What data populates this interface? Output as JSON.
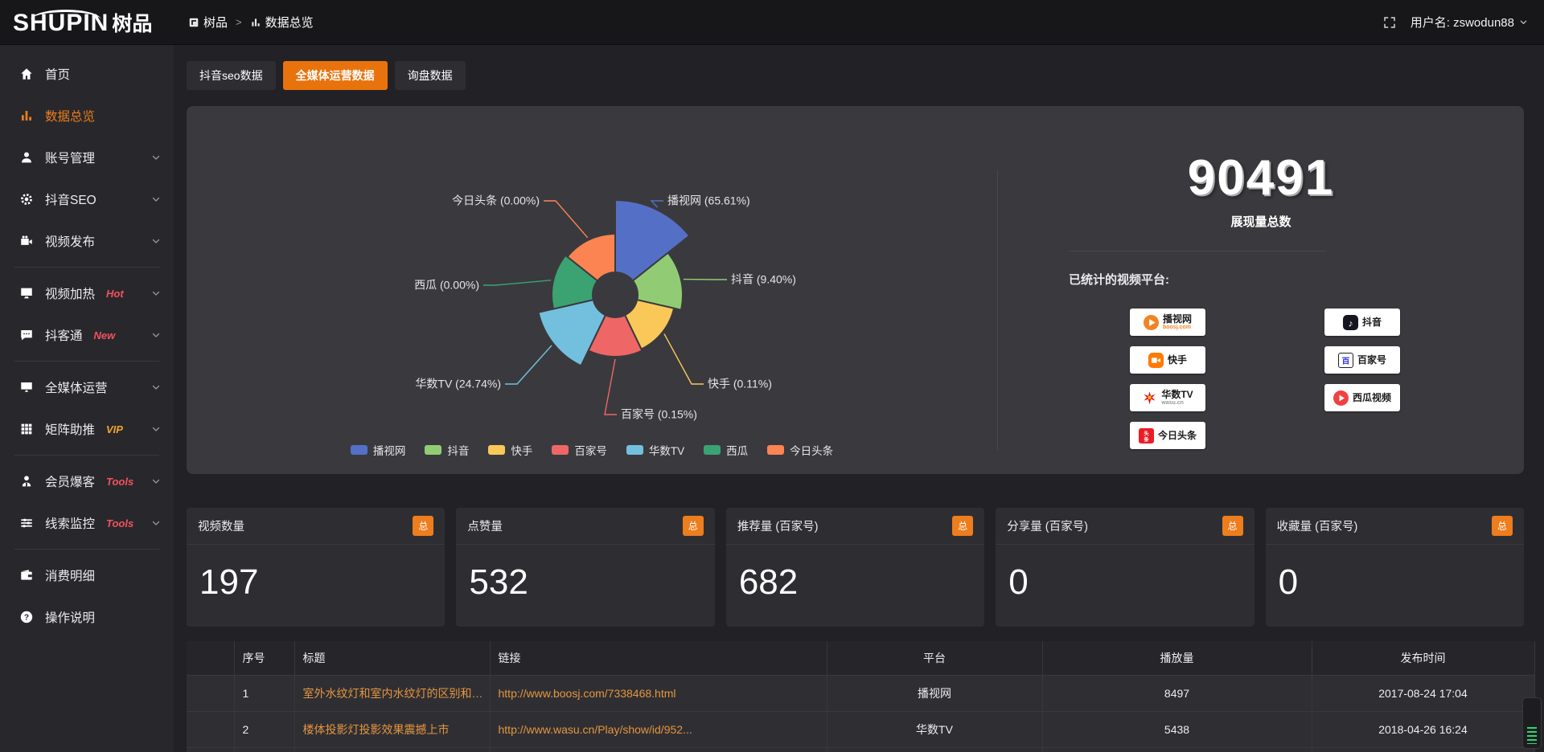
{
  "topbar": {
    "logo_en": "SHUPIN",
    "logo_cn": "树品",
    "breadcrumb": [
      {
        "icon": "app-icon",
        "label": "树品"
      },
      {
        "icon": "chart-mini-icon",
        "label": "数据总览"
      }
    ],
    "separator": ">",
    "user_label": "用户名: zswodun88"
  },
  "sidebar": {
    "items": [
      {
        "id": "home",
        "icon": "home-icon",
        "label": "首页"
      },
      {
        "id": "data-overview",
        "icon": "chart-icon",
        "label": "数据总览",
        "active": true
      },
      {
        "id": "account-manage",
        "icon": "user-icon",
        "label": "账号管理",
        "chevron": true
      },
      {
        "id": "douyin-seo",
        "icon": "gear-icon",
        "label": "抖音SEO",
        "chevron": true
      },
      {
        "id": "video-publish",
        "icon": "video-icon",
        "label": "视频发布",
        "chevron": true
      },
      {
        "divider": true
      },
      {
        "id": "video-heat",
        "icon": "monitor-icon",
        "label": "视频加热",
        "badge": "Hot",
        "badge_color": "#f4515c",
        "chevron": true
      },
      {
        "id": "douketong",
        "icon": "chat-icon",
        "label": "抖客通",
        "badge": "New",
        "badge_color": "#f4515c",
        "chevron": true
      },
      {
        "divider": true
      },
      {
        "id": "media-operation",
        "icon": "screen-icon",
        "label": "全媒体运营",
        "chevron": true
      },
      {
        "id": "matrix-boost",
        "icon": "grid-icon",
        "label": "矩阵助推",
        "badge": "VIP",
        "badge_color": "#f0a62a",
        "chevron": true
      },
      {
        "divider": true
      },
      {
        "id": "member-burst",
        "icon": "member-icon",
        "label": "会员爆客",
        "badge": "Tools",
        "badge_color": "#f4515c",
        "chevron": true
      },
      {
        "id": "clue-monitor",
        "icon": "sliders-icon",
        "label": "线索监控",
        "badge": "Tools",
        "badge_color": "#f4515c",
        "chevron": true
      },
      {
        "divider": true
      },
      {
        "id": "consumption-detail",
        "icon": "wallet-icon",
        "label": "消费明细"
      },
      {
        "id": "help",
        "icon": "help-icon",
        "label": "操作说明"
      }
    ]
  },
  "tabs": [
    {
      "id": "douyin-seo-data",
      "label": "抖音seo数据"
    },
    {
      "id": "media-operation-data",
      "label": "全媒体运营数据",
      "active": true
    },
    {
      "id": "inquiry-data",
      "label": "询盘数据"
    }
  ],
  "chart_data": {
    "type": "pie",
    "subtype": "nightingale-rose",
    "legend_position": "bottom",
    "label_format": "name (pct)",
    "series": [
      {
        "name": "播视网",
        "value": 65.61,
        "pct_label": "65.61%",
        "color": "#5470c6",
        "radius": 118
      },
      {
        "name": "抖音",
        "value": 9.4,
        "pct_label": "9.40%",
        "color": "#91cc75",
        "radius": 84
      },
      {
        "name": "快手",
        "value": 0.11,
        "pct_label": "0.11%",
        "color": "#fac858",
        "radius": 75
      },
      {
        "name": "百家号",
        "value": 0.15,
        "pct_label": "0.15%",
        "color": "#ee6666",
        "radius": 77
      },
      {
        "name": "华数TV",
        "value": 24.74,
        "pct_label": "24.74%",
        "color": "#73c0de",
        "radius": 98
      },
      {
        "name": "西瓜",
        "value": 0.0,
        "pct_label": "0.00%",
        "color": "#3ba272",
        "radius": 79
      },
      {
        "name": "今日头条",
        "value": 0.0,
        "pct_label": "0.00%",
        "color": "#fc8452",
        "radius": 76
      }
    ]
  },
  "summary": {
    "value": "90491",
    "label": "展现量总数",
    "platforms_title": "已统计的视频平台:",
    "platform_columns": [
      [
        {
          "name": "播视网",
          "sub": "boosj.com",
          "sub_color": "#f28322",
          "icon": "boosj-logo"
        },
        {
          "name": "快手",
          "icon": "kuaishou-logo"
        },
        {
          "name": "华数TV",
          "sub": "wasu.cn",
          "sub_color": "#999999",
          "icon": "wasu-logo"
        },
        {
          "name": "今日头条",
          "icon": "toutiao-logo"
        }
      ],
      [
        {
          "name": "抖音",
          "icon": "douyin-logo"
        },
        {
          "name": "百家号",
          "icon": "baijiahao-logo"
        },
        {
          "name": "西瓜视频",
          "icon": "xigua-logo"
        }
      ]
    ]
  },
  "stats": [
    {
      "label": "视频数量",
      "badge": "总",
      "value": "197"
    },
    {
      "label": "点赞量",
      "badge": "总",
      "value": "532"
    },
    {
      "label": "推荐量 (百家号)",
      "badge": "总",
      "value": "682"
    },
    {
      "label": "分享量 (百家号)",
      "badge": "总",
      "value": "0"
    },
    {
      "label": "收藏量 (百家号)",
      "badge": "总",
      "value": "0"
    }
  ],
  "table": {
    "headers": [
      "序号",
      "标题",
      "链接",
      "平台",
      "播放量",
      "发布时间"
    ],
    "rows": [
      {
        "seq": "1",
        "title": "室外水纹灯和室内水纹灯的区别和简介",
        "link": "http://www.boosj.com/7338468.html",
        "platform": "播视网",
        "plays": "8497",
        "time": "2017-08-24 17:04"
      },
      {
        "seq": "2",
        "title": "楼体投影灯投影效果震撼上市",
        "link": "http://www.wasu.cn/Play/show/id/952...",
        "platform": "华数TV",
        "plays": "5438",
        "time": "2018-04-26 16:24"
      }
    ]
  },
  "colors": {
    "accent": "#ed7d1d",
    "tab_active": "#e8730d",
    "link": "#e5953f",
    "hot_badge": "#f4515c",
    "vip_badge": "#f0a62a"
  }
}
